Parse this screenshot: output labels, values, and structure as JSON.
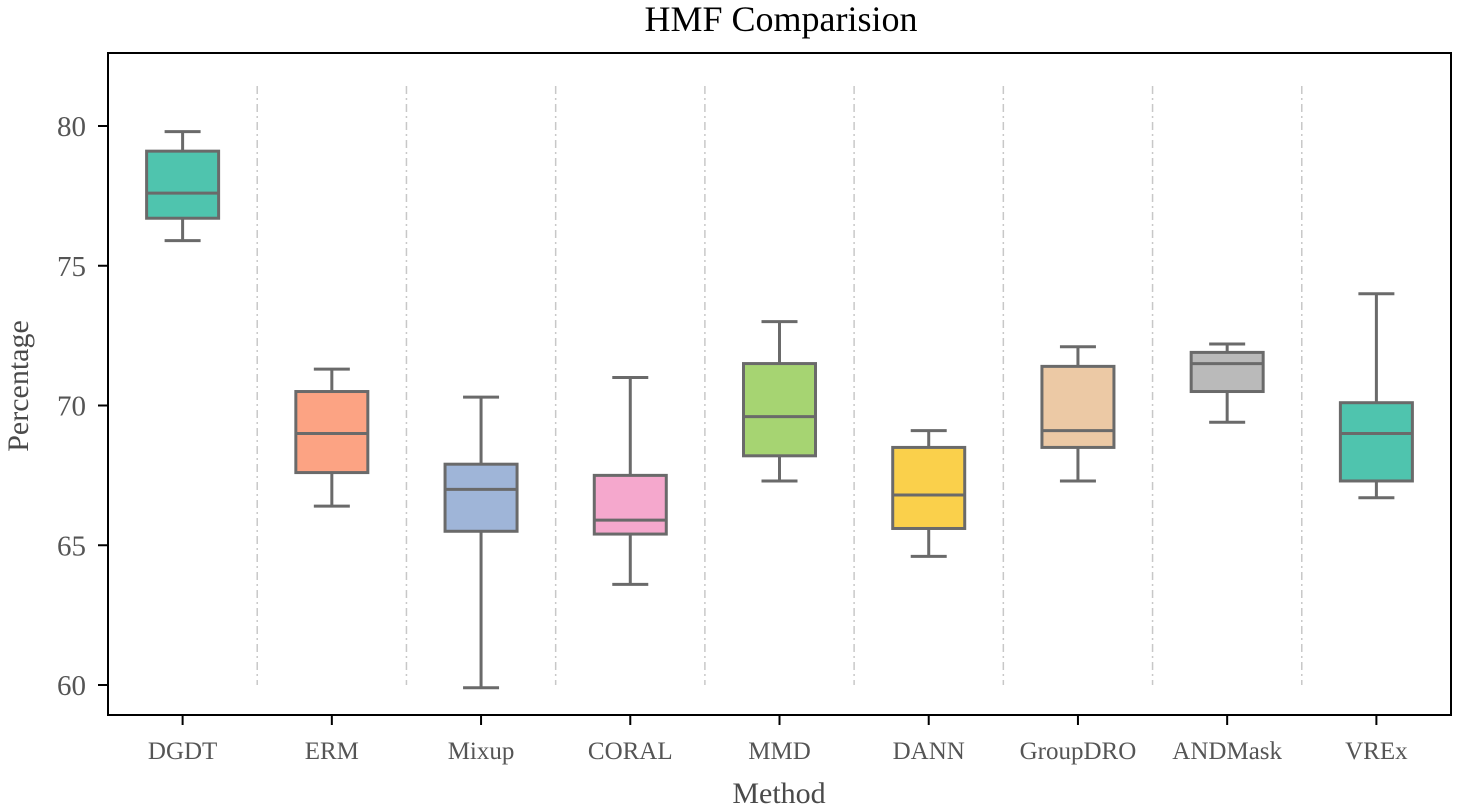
{
  "chart_data": {
    "type": "box",
    "title": "HMF Comparision",
    "xlabel": "Method",
    "ylabel": "Percentage",
    "ylim": [
      58.9,
      82.5
    ],
    "yticks": [
      60,
      65,
      70,
      75,
      80
    ],
    "grid": "vertical dash-dot separators between categories",
    "categories": [
      "DGDT",
      "ERM",
      "Mixup",
      "CORAL",
      "MMD",
      "DANN",
      "GroupDRO",
      "ANDMask",
      "VREx"
    ],
    "boxes": [
      {
        "whisker_low": 75.9,
        "q1": 76.7,
        "median": 77.6,
        "q3": 79.1,
        "whisker_high": 79.8,
        "color": "#4fc4ae"
      },
      {
        "whisker_low": 66.4,
        "q1": 67.6,
        "median": 69.0,
        "q3": 70.5,
        "whisker_high": 71.3,
        "color": "#fca383"
      },
      {
        "whisker_low": 59.9,
        "q1": 65.5,
        "median": 67.0,
        "q3": 67.9,
        "whisker_high": 70.3,
        "color": "#9fb5d8"
      },
      {
        "whisker_low": 63.6,
        "q1": 65.4,
        "median": 65.9,
        "q3": 67.5,
        "whisker_high": 71.0,
        "color": "#f5a8cd"
      },
      {
        "whisker_low": 67.3,
        "q1": 68.2,
        "median": 69.6,
        "q3": 71.5,
        "whisker_high": 73.0,
        "color": "#a6d472"
      },
      {
        "whisker_low": 64.6,
        "q1": 65.6,
        "median": 66.8,
        "q3": 68.5,
        "whisker_high": 69.1,
        "color": "#fad04b"
      },
      {
        "whisker_low": 67.3,
        "q1": 68.5,
        "median": 69.1,
        "q3": 71.4,
        "whisker_high": 72.1,
        "color": "#ecc9a5"
      },
      {
        "whisker_low": 69.4,
        "q1": 70.5,
        "median": 71.5,
        "q3": 71.9,
        "whisker_high": 72.2,
        "color": "#bababa"
      },
      {
        "whisker_low": 66.7,
        "q1": 67.3,
        "median": 69.0,
        "q3": 70.1,
        "whisker_high": 74.0,
        "color": "#4fc4ae"
      }
    ]
  }
}
